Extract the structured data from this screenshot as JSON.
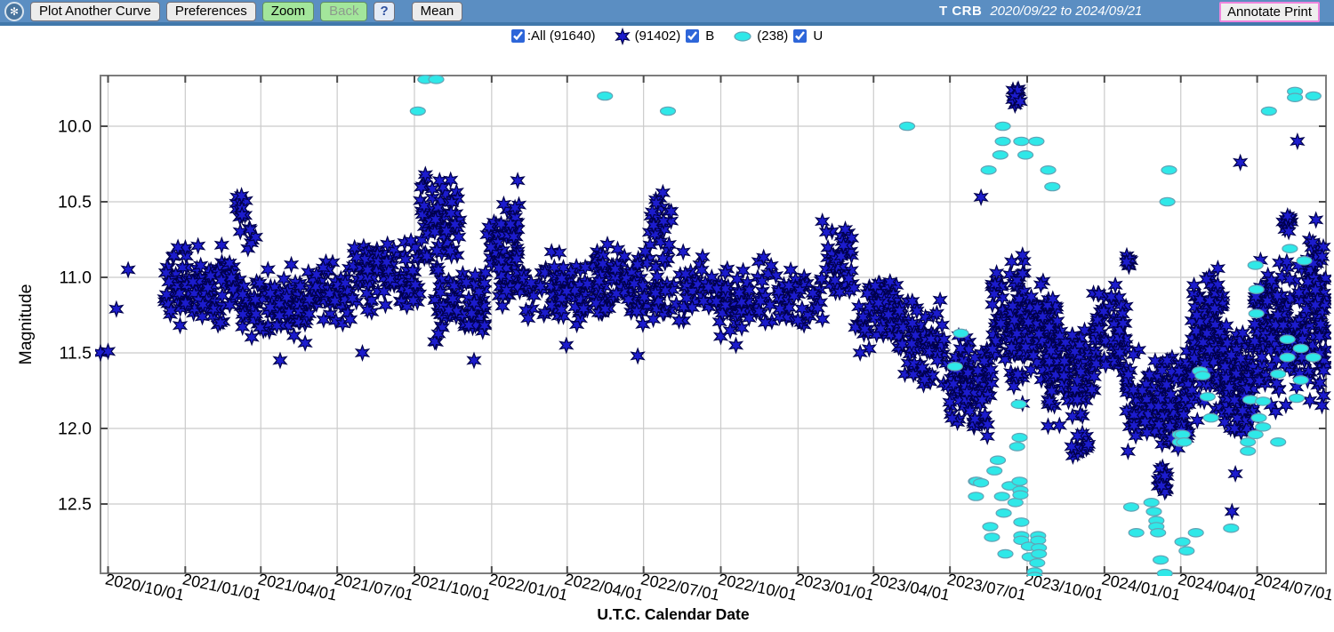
{
  "header": {
    "star_name": "T CRB",
    "date_range": "2020/09/22 to 2024/09/21"
  },
  "toolbar": {
    "buttons": {
      "plot_another_curve": "Plot Another Curve",
      "preferences": "Preferences",
      "zoom": "Zoom",
      "back": "Back",
      "help": "?",
      "mean": "Mean",
      "annotate_print": "Annotate Print"
    }
  },
  "legend": {
    "all_label": ":All (91640)",
    "b_count": "(91402)",
    "b_label": "B",
    "u_count": "(238)",
    "u_label": "U"
  },
  "colors": {
    "toolbar_bg": "#5b8ec2",
    "button_green": "#a3e69b",
    "annotate_border": "#ee85dd",
    "grid": "#cbcbcb",
    "frame": "#7d7d7d",
    "tick": "#4a4a4a",
    "text": "#000000"
  },
  "chart_data": {
    "type": "scatter",
    "title": "T CRB light curve 2020/09/22 to 2024/09/21",
    "xlabel": "U.T.C. Calendar Date",
    "ylabel": "Magnitude",
    "grid": true,
    "legend_position": "top-center",
    "x_axis": {
      "start_date": "2020/09/22",
      "end_date": "2024/09/21",
      "total_days": 1460,
      "ticks": [
        {
          "label": "2020/10/01",
          "day": 9
        },
        {
          "label": "2021/01/01",
          "day": 101
        },
        {
          "label": "2021/04/01",
          "day": 191
        },
        {
          "label": "2021/07/01",
          "day": 282
        },
        {
          "label": "2021/10/01",
          "day": 374
        },
        {
          "label": "2022/01/01",
          "day": 466
        },
        {
          "label": "2022/04/01",
          "day": 556
        },
        {
          "label": "2022/07/01",
          "day": 647
        },
        {
          "label": "2022/10/01",
          "day": 739
        },
        {
          "label": "2023/01/01",
          "day": 831
        },
        {
          "label": "2023/04/01",
          "day": 921
        },
        {
          "label": "2023/07/01",
          "day": 1012
        },
        {
          "label": "2023/10/01",
          "day": 1104
        },
        {
          "label": "2024/01/01",
          "day": 1196
        },
        {
          "label": "2024/04/01",
          "day": 1287
        },
        {
          "label": "2024/07/01",
          "day": 1378
        }
      ]
    },
    "y_axis": {
      "tick_labels": [
        "10.0",
        "10.5",
        "11.0",
        "11.5",
        "12.0",
        "12.5"
      ],
      "tick_values": [
        10.0,
        10.5,
        11.0,
        11.5,
        12.0,
        12.5
      ],
      "min": 9.67,
      "max": 12.96,
      "inverted": true
    },
    "series": [
      {
        "name": "B",
        "symbol": "star",
        "color": "#1c1ccd",
        "edge": "#00004d",
        "count_label": "(91402)",
        "clusters": [
          [
            76,
            168,
            115,
            10.75,
            11.35
          ],
          [
            160,
            185,
            16,
            10.45,
            10.85
          ],
          [
            168,
            245,
            95,
            10.9,
            11.45
          ],
          [
            245,
            300,
            55,
            10.85,
            11.35
          ],
          [
            300,
            380,
            105,
            10.68,
            11.25
          ],
          [
            380,
            428,
            70,
            10.32,
            11.0
          ],
          [
            398,
            458,
            75,
            10.9,
            11.5
          ],
          [
            458,
            500,
            45,
            10.45,
            11.05
          ],
          [
            468,
            532,
            55,
            10.8,
            11.3
          ],
          [
            537,
            600,
            75,
            10.8,
            11.32
          ],
          [
            590,
            655,
            85,
            10.75,
            11.35
          ],
          [
            652,
            680,
            22,
            10.42,
            10.85
          ],
          [
            658,
            718,
            55,
            10.8,
            11.35
          ],
          [
            718,
            805,
            75,
            10.85,
            11.4
          ],
          [
            805,
            862,
            48,
            10.85,
            11.35
          ],
          [
            860,
            898,
            42,
            10.64,
            11.22
          ],
          [
            898,
            950,
            60,
            10.95,
            11.5
          ],
          [
            950,
            1008,
            85,
            11.1,
            11.75
          ],
          [
            1008,
            1062,
            95,
            11.35,
            12.0
          ],
          [
            1040,
            1060,
            10,
            11.88,
            12.08
          ],
          [
            1062,
            1084,
            40,
            10.85,
            11.6
          ],
          [
            1086,
            1096,
            16,
            9.73,
            9.88
          ],
          [
            1084,
            1101,
            60,
            10.78,
            11.9
          ],
          [
            1101,
            1140,
            85,
            11.0,
            11.7
          ],
          [
            1128,
            1185,
            95,
            11.3,
            12.0
          ],
          [
            1158,
            1180,
            12,
            11.98,
            12.2
          ],
          [
            1183,
            1222,
            70,
            11.0,
            11.68
          ],
          [
            1222,
            1228,
            8,
            10.84,
            10.95
          ],
          [
            1222,
            1302,
            150,
            11.45,
            12.2
          ],
          [
            1255,
            1272,
            12,
            12.2,
            12.45
          ],
          [
            1300,
            1338,
            130,
            10.9,
            12.0
          ],
          [
            1338,
            1374,
            105,
            11.3,
            12.1
          ],
          [
            1374,
            1460,
            230,
            10.82,
            11.9
          ],
          [
            1408,
            1420,
            12,
            10.55,
            10.72
          ],
          [
            1438,
            1460,
            30,
            10.72,
            11.25
          ]
        ],
        "points": [
          [
            0,
            11.5
          ],
          [
            9,
            11.49
          ],
          [
            19,
            11.21
          ],
          [
            33,
            10.95
          ],
          [
            84,
            11.22
          ],
          [
            122,
            11.18
          ],
          [
            168,
            10.46
          ],
          [
            214,
            11.55
          ],
          [
            312,
            11.5
          ],
          [
            387,
            10.32
          ],
          [
            404,
            10.36
          ],
          [
            445,
            11.55
          ],
          [
            497,
            10.36
          ],
          [
            555,
            11.45
          ],
          [
            640,
            11.52
          ],
          [
            670,
            10.44
          ],
          [
            757,
            11.45
          ],
          [
            860,
            10.63
          ],
          [
            875,
            11.02
          ],
          [
            905,
            11.5
          ],
          [
            1049,
            10.47
          ],
          [
            1157,
            12.12
          ],
          [
            1164,
            12.05
          ],
          [
            1268,
            12.42
          ],
          [
            1264,
            12.38
          ],
          [
            1348,
            12.55
          ],
          [
            1352,
            12.3
          ],
          [
            1358,
            10.24
          ],
          [
            1426,
            10.1
          ],
          [
            1448,
            10.62
          ]
        ]
      },
      {
        "name": "U",
        "symbol": "ellipse",
        "color": "#2fe8e8",
        "edge": "#63a3b5",
        "count_label": "(238)",
        "points": [
          [
            378,
            9.9
          ],
          [
            387,
            9.69
          ],
          [
            400,
            9.69
          ],
          [
            601,
            9.8
          ],
          [
            676,
            9.9
          ],
          [
            961,
            10.0
          ],
          [
            1018,
            11.59
          ],
          [
            1025,
            11.37
          ],
          [
            1043,
            12.35
          ],
          [
            1043,
            12.45
          ],
          [
            1044,
            12.35
          ],
          [
            1049,
            12.36
          ],
          [
            1058,
            10.29
          ],
          [
            1060,
            12.65
          ],
          [
            1062,
            12.72
          ],
          [
            1065,
            12.28
          ],
          [
            1069,
            12.21
          ],
          [
            1072,
            10.19
          ],
          [
            1074,
            12.45
          ],
          [
            1075,
            10.0
          ],
          [
            1075,
            10.1
          ],
          [
            1076,
            12.56
          ],
          [
            1078,
            12.83
          ],
          [
            1083,
            12.38
          ],
          [
            1090,
            12.49
          ],
          [
            1092,
            12.12
          ],
          [
            1094,
            11.84
          ],
          [
            1095,
            12.06
          ],
          [
            1095,
            12.35
          ],
          [
            1096,
            12.41
          ],
          [
            1096,
            12.44
          ],
          [
            1097,
            10.1
          ],
          [
            1097,
            12.62
          ],
          [
            1097,
            12.71
          ],
          [
            1097,
            12.74
          ],
          [
            1102,
            10.19
          ],
          [
            1106,
            12.78
          ],
          [
            1107,
            12.85
          ],
          [
            1113,
            12.95
          ],
          [
            1113,
            12.98
          ],
          [
            1115,
            10.1
          ],
          [
            1116,
            12.89
          ],
          [
            1117,
            12.71
          ],
          [
            1117,
            12.74
          ],
          [
            1118,
            12.79
          ],
          [
            1118,
            12.83
          ],
          [
            1129,
            10.29
          ],
          [
            1134,
            10.4
          ],
          [
            1228,
            12.52
          ],
          [
            1234,
            12.69
          ],
          [
            1252,
            12.49
          ],
          [
            1255,
            12.55
          ],
          [
            1258,
            12.61
          ],
          [
            1258,
            12.65
          ],
          [
            1260,
            12.69
          ],
          [
            1263,
            12.87
          ],
          [
            1268,
            12.96
          ],
          [
            1271,
            10.5
          ],
          [
            1273,
            10.29
          ],
          [
            1286,
            12.04
          ],
          [
            1286,
            12.09
          ],
          [
            1289,
            12.04
          ],
          [
            1289,
            12.75
          ],
          [
            1291,
            12.09
          ],
          [
            1294,
            12.81
          ],
          [
            1305,
            12.69
          ],
          [
            1310,
            11.62
          ],
          [
            1313,
            11.65
          ],
          [
            1319,
            11.79
          ],
          [
            1323,
            11.93
          ],
          [
            1347,
            12.66
          ],
          [
            1367,
            12.09
          ],
          [
            1367,
            12.15
          ],
          [
            1370,
            11.81
          ],
          [
            1376,
            10.92
          ],
          [
            1376,
            12.04
          ],
          [
            1377,
            11.08
          ],
          [
            1377,
            11.24
          ],
          [
            1380,
            11.93
          ],
          [
            1385,
            11.82
          ],
          [
            1385,
            11.99
          ],
          [
            1392,
            9.9
          ],
          [
            1403,
            11.64
          ],
          [
            1403,
            12.09
          ],
          [
            1414,
            11.41
          ],
          [
            1414,
            11.53
          ],
          [
            1417,
            10.81
          ],
          [
            1423,
            9.77
          ],
          [
            1423,
            9.81
          ],
          [
            1425,
            11.8
          ],
          [
            1430,
            11.47
          ],
          [
            1430,
            11.68
          ],
          [
            1434,
            10.89
          ],
          [
            1445,
            9.8
          ],
          [
            1445,
            11.53
          ]
        ]
      }
    ]
  }
}
